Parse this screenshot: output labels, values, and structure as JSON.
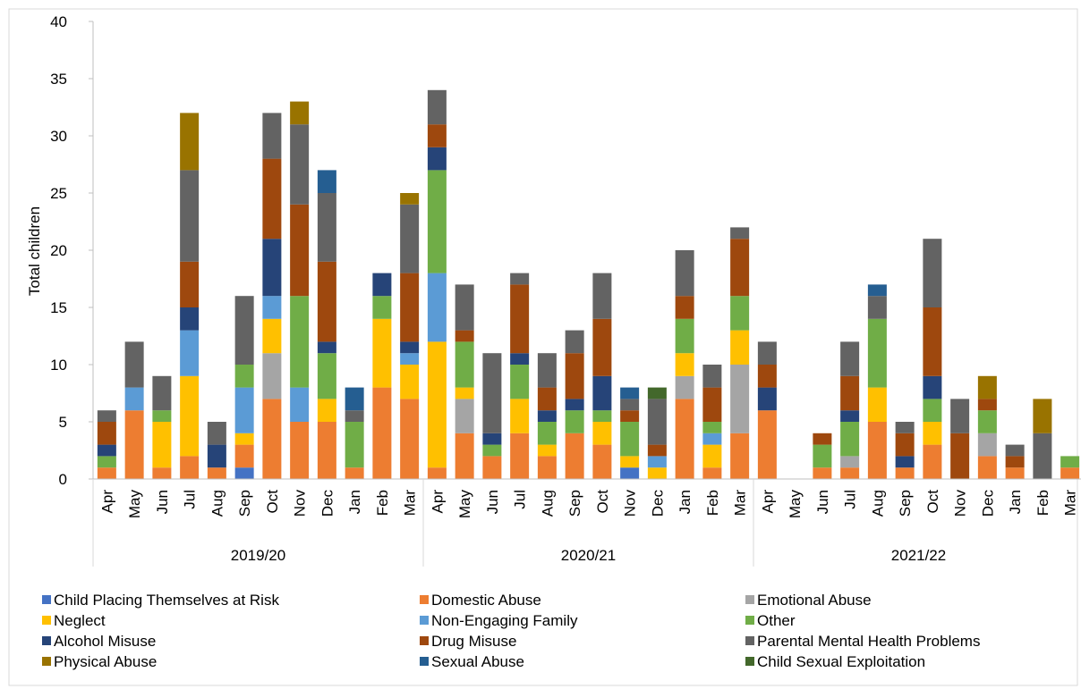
{
  "chart_data": {
    "type": "bar",
    "stacked": true,
    "ylabel": "Total children",
    "ylim": [
      0,
      40
    ],
    "yticks": [
      0,
      5,
      10,
      15,
      20,
      25,
      30,
      35,
      40
    ],
    "grid": false,
    "legend_position": "bottom",
    "groups": [
      {
        "label": "2019/20",
        "months": [
          "Apr",
          "May",
          "Jun",
          "Jul",
          "Aug",
          "Sep",
          "Oct",
          "Nov",
          "Dec",
          "Jan",
          "Feb",
          "Mar"
        ]
      },
      {
        "label": "2020/21",
        "months": [
          "Apr",
          "May",
          "Jun",
          "Jul",
          "Aug",
          "Sep",
          "Oct",
          "Nov",
          "Dec",
          "Jan",
          "Feb",
          "Mar"
        ]
      },
      {
        "label": "2021/22",
        "months": [
          "Apr",
          "May",
          "Jun",
          "Jul",
          "Aug",
          "Sep",
          "Oct",
          "Nov",
          "Dec",
          "Jan",
          "Feb",
          "Mar"
        ]
      }
    ],
    "series": [
      {
        "name": "Child Placing Themselves at Risk",
        "color": "#4472C4",
        "values": [
          0,
          0,
          0,
          0,
          0,
          1,
          0,
          0,
          0,
          0,
          0,
          0,
          0,
          0,
          0,
          0,
          0,
          0,
          0,
          1,
          0,
          0,
          0,
          0,
          0,
          0,
          0,
          0,
          0,
          0,
          0,
          0,
          0,
          0,
          0,
          0
        ]
      },
      {
        "name": "Domestic Abuse",
        "color": "#ED7D31",
        "values": [
          1,
          6,
          1,
          2,
          1,
          2,
          7,
          5,
          5,
          1,
          8,
          7,
          1,
          4,
          2,
          4,
          2,
          4,
          3,
          0,
          0,
          7,
          1,
          4,
          6,
          0,
          1,
          1,
          5,
          1,
          3,
          0,
          2,
          1,
          0,
          1
        ]
      },
      {
        "name": "Emotional Abuse",
        "color": "#A5A5A5",
        "values": [
          0,
          0,
          0,
          0,
          0,
          0,
          4,
          0,
          0,
          0,
          0,
          0,
          0,
          3,
          0,
          0,
          0,
          0,
          0,
          0,
          0,
          2,
          0,
          6,
          0,
          0,
          0,
          1,
          0,
          0,
          0,
          0,
          2,
          0,
          0,
          0
        ]
      },
      {
        "name": "Neglect",
        "color": "#FFC000",
        "values": [
          0,
          0,
          4,
          7,
          0,
          1,
          3,
          0,
          2,
          0,
          6,
          3,
          11,
          1,
          0,
          3,
          1,
          0,
          2,
          1,
          1,
          2,
          2,
          3,
          0,
          0,
          0,
          0,
          3,
          0,
          2,
          0,
          0,
          0,
          0,
          0
        ]
      },
      {
        "name": "Non-Engaging Family",
        "color": "#5B9BD5",
        "values": [
          0,
          2,
          0,
          4,
          0,
          4,
          2,
          3,
          0,
          0,
          0,
          1,
          6,
          0,
          0,
          0,
          0,
          0,
          0,
          0,
          1,
          0,
          1,
          0,
          0,
          0,
          0,
          0,
          0,
          0,
          0,
          0,
          0,
          0,
          0,
          0
        ]
      },
      {
        "name": "Other",
        "color": "#70AD47",
        "values": [
          1,
          0,
          1,
          0,
          0,
          2,
          0,
          8,
          4,
          4,
          2,
          0,
          9,
          4,
          1,
          3,
          2,
          2,
          1,
          3,
          0,
          3,
          1,
          3,
          0,
          0,
          2,
          3,
          6,
          0,
          2,
          0,
          2,
          0,
          0,
          1
        ]
      },
      {
        "name": "Alcohol Misuse",
        "color": "#264478",
        "values": [
          1,
          0,
          0,
          2,
          2,
          0,
          5,
          0,
          1,
          0,
          2,
          1,
          2,
          0,
          1,
          1,
          1,
          1,
          3,
          0,
          0,
          0,
          0,
          0,
          2,
          0,
          0,
          1,
          0,
          1,
          2,
          0,
          0,
          0,
          0,
          0
        ]
      },
      {
        "name": "Drug Misuse",
        "color": "#9E480E",
        "values": [
          2,
          0,
          0,
          4,
          0,
          0,
          7,
          8,
          7,
          0,
          0,
          6,
          2,
          1,
          0,
          6,
          2,
          4,
          5,
          1,
          1,
          2,
          3,
          5,
          2,
          0,
          1,
          3,
          0,
          2,
          6,
          4,
          1,
          1,
          0,
          0
        ]
      },
      {
        "name": "Parental Mental Health Problems",
        "color": "#636363",
        "values": [
          1,
          4,
          3,
          8,
          2,
          6,
          4,
          7,
          6,
          1,
          0,
          6,
          3,
          4,
          7,
          1,
          3,
          2,
          4,
          1,
          4,
          4,
          2,
          1,
          2,
          0,
          0,
          3,
          2,
          1,
          6,
          3,
          0,
          1,
          4,
          0
        ]
      },
      {
        "name": "Physical Abuse",
        "color": "#997300",
        "values": [
          0,
          0,
          0,
          5,
          0,
          0,
          0,
          2,
          0,
          0,
          0,
          1,
          0,
          0,
          0,
          0,
          0,
          0,
          0,
          0,
          0,
          0,
          0,
          0,
          0,
          0,
          0,
          0,
          0,
          0,
          0,
          0,
          2,
          0,
          3,
          0
        ]
      },
      {
        "name": "Sexual Abuse",
        "color": "#255E91",
        "values": [
          0,
          0,
          0,
          0,
          0,
          0,
          0,
          0,
          2,
          2,
          0,
          0,
          0,
          0,
          0,
          0,
          0,
          0,
          0,
          1,
          0,
          0,
          0,
          0,
          0,
          0,
          0,
          0,
          1,
          0,
          0,
          0,
          0,
          0,
          0,
          0
        ]
      },
      {
        "name": "Child Sexual Exploitation",
        "color": "#43682B",
        "values": [
          0,
          0,
          0,
          0,
          0,
          0,
          0,
          0,
          0,
          0,
          0,
          0,
          0,
          0,
          0,
          0,
          0,
          0,
          0,
          0,
          1,
          0,
          0,
          0,
          0,
          0,
          0,
          0,
          0,
          0,
          0,
          0,
          0,
          0,
          0,
          0
        ]
      }
    ]
  }
}
